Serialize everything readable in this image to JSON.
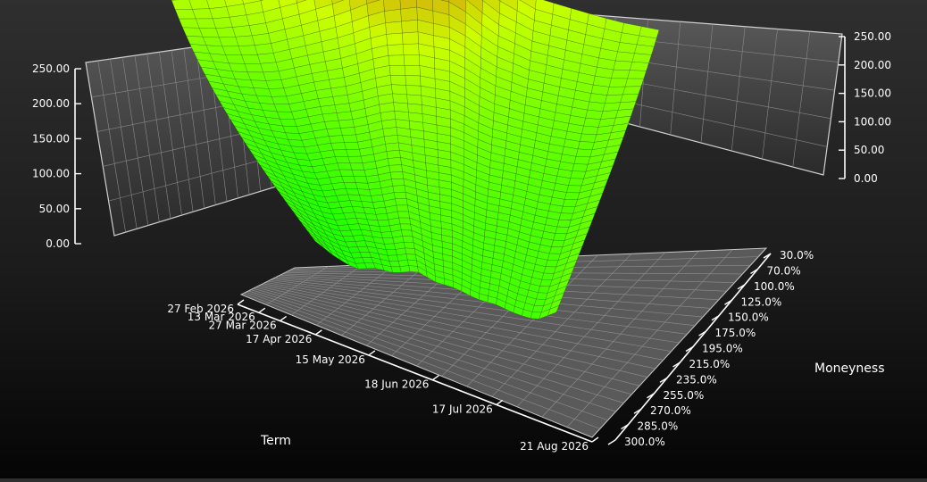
{
  "chart_data": {
    "type": "surface",
    "title": "",
    "xlabel": "Term",
    "ylabel": "Moneyness",
    "zlim": [
      0,
      250
    ],
    "grid": true,
    "term_ticks": [
      "27 Feb 2026",
      "13 Mar 2026",
      "27 Mar 2026",
      "17 Apr 2026",
      "15 May 2026",
      "18 Jun 2026",
      "17 Jul 2026",
      "21 Aug 2026"
    ],
    "moneyness_ticks": [
      "30.0%",
      "70.0%",
      "100.0%",
      "125.0%",
      "150.0%",
      "175.0%",
      "195.0%",
      "215.0%",
      "235.0%",
      "255.0%",
      "270.0%",
      "285.0%",
      "300.0%"
    ],
    "left_z_ticks": [
      "0.00",
      "50.00",
      "100.00",
      "150.00",
      "200.00",
      "250.00"
    ],
    "right_z_ticks": [
      "0.00",
      "50.00",
      "100.00",
      "150.00",
      "200.00",
      "250.00"
    ],
    "colors": {
      "low": "#22ff00",
      "mid": "#ccff00",
      "high": "#e0301a",
      "grid": "#9a9a9a",
      "axis": "#ffffff"
    },
    "front_term_volatility": [
      125,
      132,
      145,
      162,
      185,
      210,
      228,
      215,
      168,
      140,
      128,
      117,
      110
    ],
    "back_term_volatility": [
      45,
      35,
      30,
      40,
      43,
      55,
      50,
      53,
      52,
      56,
      55,
      58,
      78
    ]
  }
}
